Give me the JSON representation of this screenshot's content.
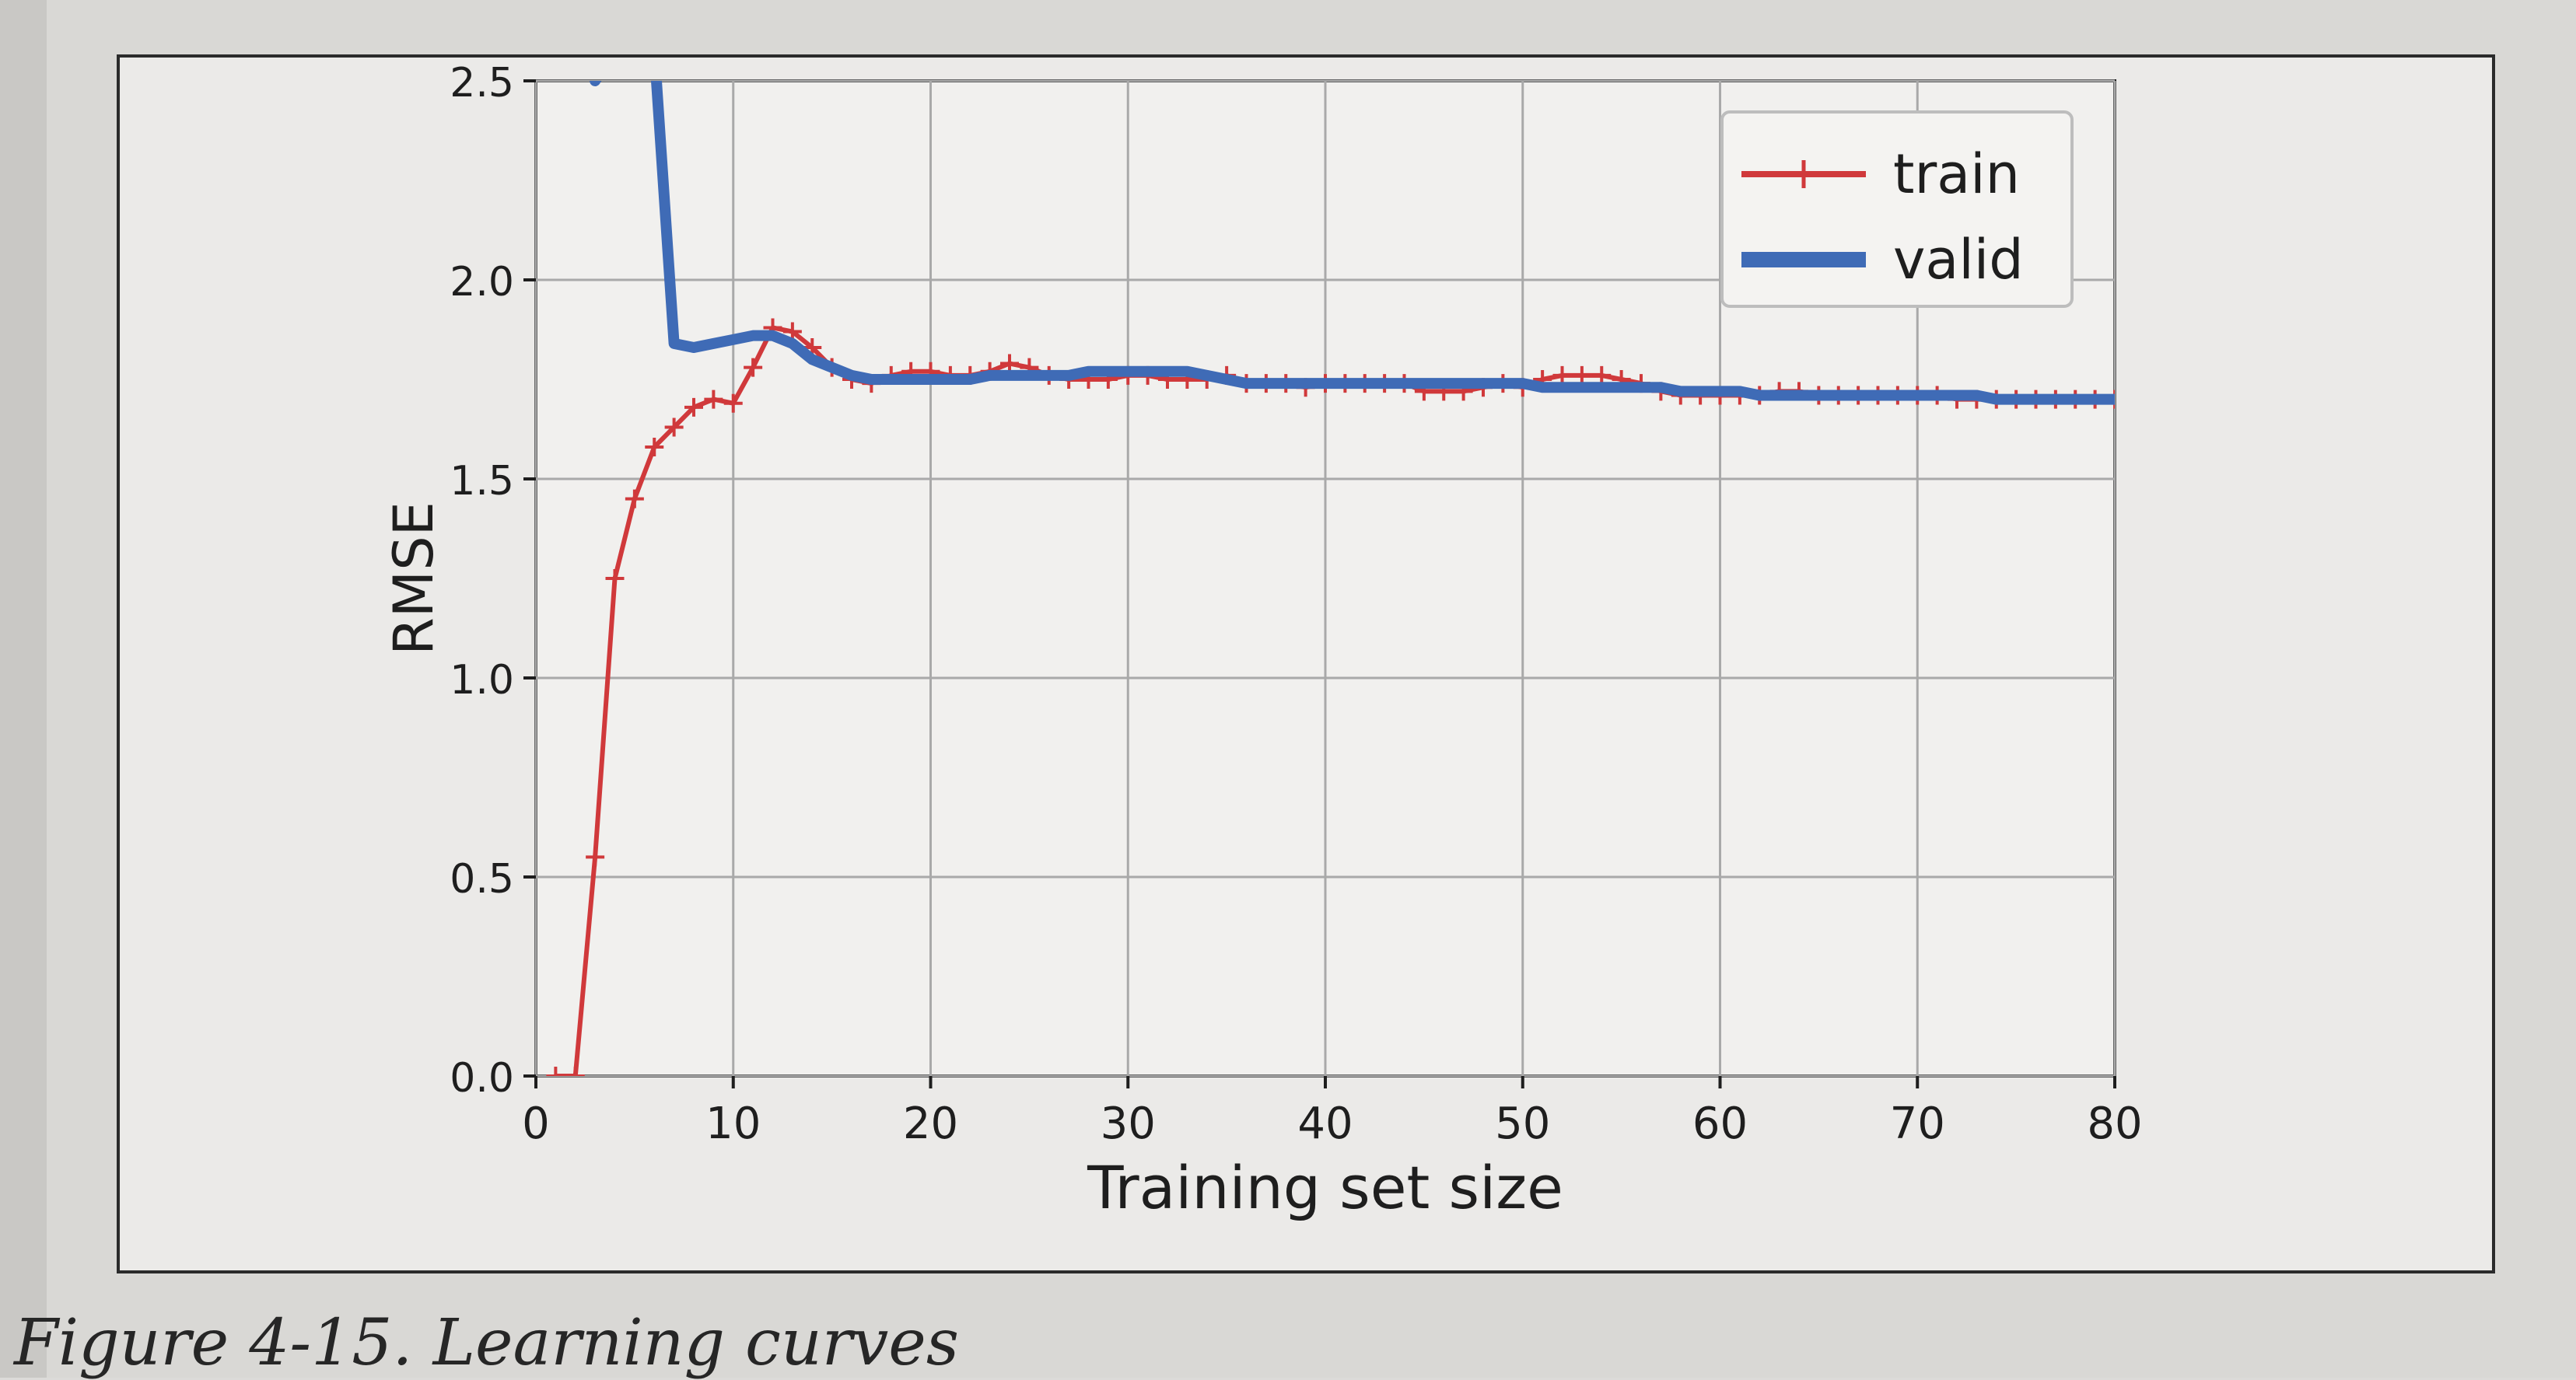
{
  "page": {
    "caption": "Figure 4-15. Learning curves"
  },
  "chart_data": {
    "type": "line",
    "xlabel": "Training set size",
    "ylabel": "RMSE",
    "xlim": [
      0,
      80
    ],
    "ylim": [
      0,
      2.5
    ],
    "xticks": [
      0,
      10,
      20,
      30,
      40,
      50,
      60,
      70,
      80
    ],
    "yticks": [
      0.0,
      0.5,
      1.0,
      1.5,
      2.0,
      2.5
    ],
    "grid": true,
    "legend": "top-right",
    "series": [
      {
        "name": "train",
        "color": "#d0393b",
        "marker": "+",
        "x": [
          1,
          2,
          3,
          4,
          5,
          6,
          7,
          8,
          9,
          10,
          11,
          12,
          13,
          14,
          15,
          16,
          17,
          18,
          19,
          20,
          21,
          22,
          23,
          24,
          25,
          26,
          27,
          28,
          29,
          30,
          31,
          32,
          33,
          34,
          35,
          36,
          37,
          38,
          39,
          40,
          41,
          42,
          43,
          44,
          45,
          46,
          47,
          48,
          49,
          50,
          51,
          52,
          53,
          54,
          55,
          56,
          57,
          58,
          59,
          60,
          61,
          62,
          63,
          64,
          65,
          66,
          67,
          68,
          69,
          70,
          71,
          72,
          73,
          74,
          75,
          76,
          77,
          78,
          79,
          80
        ],
        "y": [
          0.0,
          0.0,
          0.55,
          1.25,
          1.45,
          1.58,
          1.63,
          1.68,
          1.7,
          1.69,
          1.78,
          1.88,
          1.87,
          1.83,
          1.78,
          1.75,
          1.74,
          1.76,
          1.77,
          1.77,
          1.76,
          1.76,
          1.77,
          1.79,
          1.78,
          1.76,
          1.75,
          1.75,
          1.75,
          1.76,
          1.76,
          1.75,
          1.75,
          1.75,
          1.76,
          1.74,
          1.74,
          1.74,
          1.73,
          1.74,
          1.74,
          1.74,
          1.74,
          1.74,
          1.72,
          1.72,
          1.72,
          1.73,
          1.74,
          1.73,
          1.75,
          1.76,
          1.76,
          1.76,
          1.75,
          1.74,
          1.72,
          1.71,
          1.71,
          1.71,
          1.71,
          1.71,
          1.72,
          1.72,
          1.71,
          1.71,
          1.71,
          1.71,
          1.71,
          1.71,
          1.71,
          1.7,
          1.7,
          1.7,
          1.7,
          1.7,
          1.7,
          1.7,
          1.7,
          1.7
        ]
      },
      {
        "name": "valid",
        "color": "#3f6bb6",
        "marker": "none",
        "x": [
          3,
          4,
          5,
          6,
          7,
          8,
          9,
          10,
          11,
          12,
          13,
          14,
          15,
          16,
          17,
          18,
          19,
          20,
          21,
          22,
          23,
          24,
          25,
          26,
          27,
          28,
          29,
          30,
          31,
          32,
          33,
          34,
          35,
          36,
          37,
          38,
          39,
          40,
          41,
          42,
          43,
          44,
          45,
          46,
          47,
          48,
          49,
          50,
          51,
          52,
          53,
          54,
          55,
          56,
          57,
          58,
          59,
          60,
          61,
          62,
          63,
          64,
          65,
          66,
          67,
          68,
          69,
          70,
          71,
          72,
          73,
          74,
          75,
          76,
          77,
          78,
          79,
          80
        ],
        "y": [
          2.5,
          2.58,
          2.65,
          2.58,
          1.84,
          1.83,
          1.84,
          1.85,
          1.86,
          1.86,
          1.84,
          1.8,
          1.78,
          1.76,
          1.75,
          1.75,
          1.75,
          1.75,
          1.75,
          1.75,
          1.76,
          1.76,
          1.76,
          1.76,
          1.76,
          1.77,
          1.77,
          1.77,
          1.77,
          1.77,
          1.77,
          1.76,
          1.75,
          1.74,
          1.74,
          1.74,
          1.74,
          1.74,
          1.74,
          1.74,
          1.74,
          1.74,
          1.74,
          1.74,
          1.74,
          1.74,
          1.74,
          1.74,
          1.73,
          1.73,
          1.73,
          1.73,
          1.73,
          1.73,
          1.73,
          1.72,
          1.72,
          1.72,
          1.72,
          1.71,
          1.71,
          1.71,
          1.71,
          1.71,
          1.71,
          1.71,
          1.71,
          1.71,
          1.71,
          1.71,
          1.71,
          1.7,
          1.7,
          1.7,
          1.7,
          1.7,
          1.7,
          1.7
        ]
      }
    ]
  }
}
